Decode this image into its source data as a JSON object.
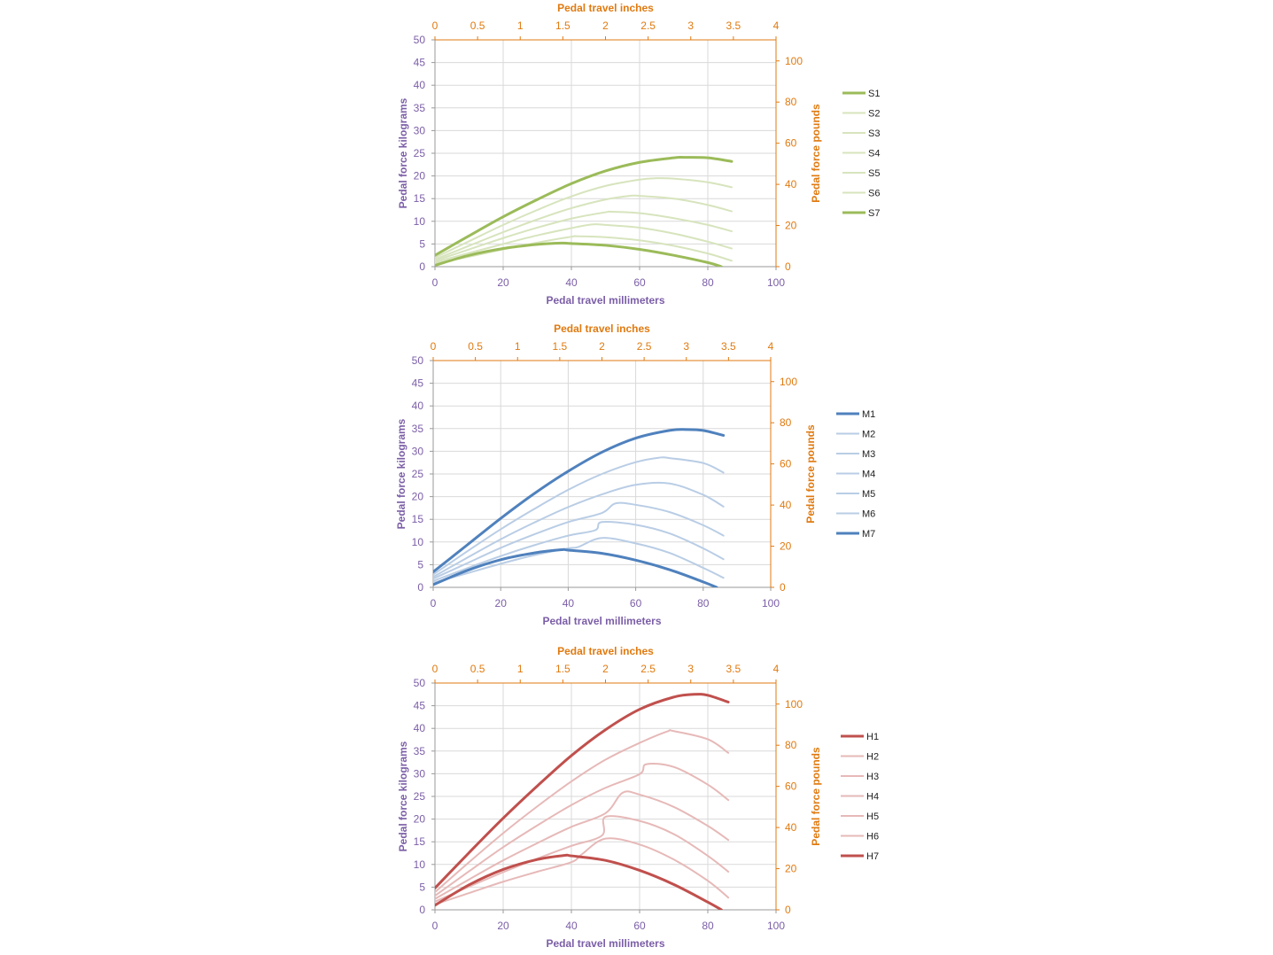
{
  "chart_data": [
    {
      "type": "line",
      "id": "S",
      "xlabel": "Pedal travel millimeters",
      "x2label": "Pedal travel inches",
      "ylabel": "Pedal force kilograms",
      "y2label": "Pedal force pounds",
      "xlim": [
        0,
        100
      ],
      "x2lim": [
        0,
        4
      ],
      "ylim": [
        0,
        50
      ],
      "y2lim": [
        0,
        110.23
      ],
      "xticks": [
        0,
        20,
        40,
        60,
        80,
        100
      ],
      "x2ticks": [
        "0",
        "0.5",
        "1",
        "1.5",
        "2",
        "2.5",
        "3",
        "3.5",
        "4"
      ],
      "yticks": [
        0,
        5,
        10,
        15,
        20,
        25,
        30,
        35,
        40,
        45,
        50
      ],
      "y2ticks": [
        0,
        20,
        40,
        60,
        80,
        100
      ],
      "grid": true,
      "legend_position": "right",
      "color_strong": "#9bbb59",
      "color_light": "#d7e4bd",
      "series": [
        {
          "name": "S1",
          "emphasis": true,
          "x": [
            0,
            10,
            20,
            30,
            40,
            50,
            60,
            70,
            73,
            80,
            87
          ],
          "values": [
            2.5,
            6.8,
            11.0,
            14.8,
            18.3,
            21.1,
            23.0,
            24.0,
            24.1,
            24.0,
            23.2
          ]
        },
        {
          "name": "S2",
          "emphasis": false,
          "x": [
            0,
            10,
            20,
            30,
            40,
            50,
            60,
            65,
            70,
            80,
            87
          ],
          "values": [
            2.0,
            5.6,
            9.2,
            12.5,
            15.5,
            17.8,
            19.2,
            19.5,
            19.4,
            18.6,
            17.5
          ]
        },
        {
          "name": "S3",
          "emphasis": false,
          "x": [
            0,
            10,
            20,
            30,
            40,
            50,
            57,
            60,
            70,
            80,
            87
          ],
          "values": [
            1.6,
            4.6,
            7.6,
            10.4,
            12.9,
            14.8,
            15.6,
            15.6,
            15.0,
            13.6,
            12.2
          ]
        },
        {
          "name": "S4",
          "emphasis": false,
          "x": [
            0,
            10,
            20,
            30,
            40,
            50,
            52,
            60,
            70,
            80,
            87
          ],
          "values": [
            1.3,
            3.8,
            6.3,
            8.6,
            10.6,
            12.0,
            12.1,
            11.8,
            10.7,
            9.2,
            7.8
          ]
        },
        {
          "name": "S5",
          "emphasis": false,
          "x": [
            0,
            10,
            20,
            30,
            40,
            46,
            50,
            60,
            70,
            80,
            87
          ],
          "values": [
            1.0,
            3.0,
            5.0,
            6.9,
            8.5,
            9.3,
            9.2,
            8.6,
            7.3,
            5.5,
            4.0
          ]
        },
        {
          "name": "S6",
          "emphasis": false,
          "x": [
            0,
            10,
            20,
            30,
            40,
            42,
            50,
            60,
            70,
            80,
            87
          ],
          "values": [
            0.7,
            2.2,
            3.8,
            5.3,
            6.6,
            6.7,
            6.5,
            5.8,
            4.6,
            2.9,
            1.3
          ]
        },
        {
          "name": "S7",
          "emphasis": true,
          "x": [
            0,
            10,
            20,
            30,
            37,
            40,
            50,
            60,
            70,
            80,
            84
          ],
          "values": [
            0.3,
            2.5,
            4.0,
            4.9,
            5.2,
            5.1,
            4.7,
            3.8,
            2.5,
            0.9,
            0.0
          ]
        }
      ]
    },
    {
      "type": "line",
      "id": "M",
      "xlabel": "Pedal travel millimeters",
      "x2label": "Pedal travel inches",
      "ylabel": "Pedal force kilograms",
      "y2label": "Pedal force pounds",
      "xlim": [
        0,
        100
      ],
      "x2lim": [
        0,
        4
      ],
      "ylim": [
        0,
        50
      ],
      "y2lim": [
        0,
        110.23
      ],
      "xticks": [
        0,
        20,
        40,
        60,
        80,
        100
      ],
      "x2ticks": [
        "0",
        "0.5",
        "1",
        "1.5",
        "2",
        "2.5",
        "3",
        "3.5",
        "4"
      ],
      "yticks": [
        0,
        5,
        10,
        15,
        20,
        25,
        30,
        35,
        40,
        45,
        50
      ],
      "y2ticks": [
        0,
        20,
        40,
        60,
        80,
        100
      ],
      "grid": true,
      "legend_position": "right",
      "color_strong": "#4f81bd",
      "color_light": "#b9cde5",
      "series": [
        {
          "name": "M1",
          "emphasis": true,
          "x": [
            0,
            10,
            20,
            30,
            40,
            50,
            60,
            70,
            75,
            80,
            86
          ],
          "values": [
            3.4,
            9.3,
            15.2,
            20.7,
            25.6,
            29.8,
            32.9,
            34.6,
            34.8,
            34.6,
            33.5
          ]
        },
        {
          "name": "M2",
          "emphasis": false,
          "x": [
            0,
            10,
            20,
            30,
            40,
            50,
            60,
            67,
            70,
            80,
            86
          ],
          "values": [
            2.8,
            7.9,
            12.8,
            17.3,
            21.5,
            25.0,
            27.6,
            28.6,
            28.5,
            27.4,
            25.3
          ]
        },
        {
          "name": "M3",
          "emphasis": false,
          "x": [
            0,
            10,
            20,
            30,
            40,
            50,
            60,
            70,
            80,
            86
          ],
          "values": [
            2.3,
            6.5,
            10.6,
            14.3,
            17.7,
            20.5,
            22.6,
            22.9,
            20.4,
            17.8
          ]
        },
        {
          "name": "M4",
          "emphasis": false,
          "x": [
            0,
            10,
            20,
            30,
            40,
            50,
            54,
            60,
            70,
            80,
            86
          ],
          "values": [
            1.9,
            5.3,
            8.7,
            11.7,
            14.4,
            16.4,
            18.5,
            18.2,
            16.6,
            13.7,
            11.4
          ]
        },
        {
          "name": "M5",
          "emphasis": false,
          "x": [
            0,
            10,
            20,
            30,
            40,
            48,
            50,
            60,
            70,
            80,
            86
          ],
          "values": [
            1.4,
            4.2,
            6.9,
            9.3,
            11.4,
            12.6,
            14.4,
            13.8,
            11.9,
            8.6,
            6.2
          ]
        },
        {
          "name": "M6",
          "emphasis": false,
          "x": [
            0,
            10,
            20,
            30,
            40,
            43,
            50,
            60,
            70,
            80,
            86
          ],
          "values": [
            1.0,
            3.1,
            5.2,
            7.1,
            8.6,
            8.9,
            10.9,
            9.7,
            7.6,
            4.3,
            2.1
          ]
        },
        {
          "name": "M7",
          "emphasis": true,
          "x": [
            0,
            10,
            20,
            30,
            38,
            40,
            50,
            60,
            70,
            80,
            84
          ],
          "values": [
            0.6,
            3.7,
            6.1,
            7.6,
            8.3,
            8.2,
            7.5,
            6.0,
            3.9,
            1.2,
            0.0
          ]
        }
      ]
    },
    {
      "type": "line",
      "id": "H",
      "xlabel": "Pedal travel millimeters",
      "x2label": "Pedal travel inches",
      "ylabel": "Pedal force kilograms",
      "y2label": "Pedal force pounds",
      "xlim": [
        0,
        100
      ],
      "x2lim": [
        0,
        4
      ],
      "ylim": [
        0,
        50
      ],
      "y2lim": [
        0,
        110.23
      ],
      "xticks": [
        0,
        20,
        40,
        60,
        80,
        100
      ],
      "x2ticks": [
        "0",
        "0.5",
        "1",
        "1.5",
        "2",
        "2.5",
        "3",
        "3.5",
        "4"
      ],
      "yticks": [
        0,
        5,
        10,
        15,
        20,
        25,
        30,
        35,
        40,
        45,
        50
      ],
      "y2ticks": [
        0,
        20,
        40,
        60,
        80,
        100
      ],
      "grid": true,
      "legend_position": "right",
      "color_strong": "#c0504d",
      "color_light": "#e6b9b8",
      "series": [
        {
          "name": "H1",
          "emphasis": true,
          "x": [
            0,
            10,
            20,
            30,
            40,
            50,
            60,
            70,
            76,
            80,
            86
          ],
          "values": [
            4.8,
            12.6,
            20.2,
            27.3,
            34.0,
            39.7,
            44.2,
            46.9,
            47.5,
            47.3,
            45.8
          ]
        },
        {
          "name": "H2",
          "emphasis": false,
          "x": [
            0,
            10,
            20,
            30,
            40,
            50,
            60,
            68,
            70,
            80,
            86
          ],
          "values": [
            3.9,
            10.5,
            16.9,
            22.8,
            28.3,
            33.1,
            36.8,
            39.3,
            39.4,
            37.6,
            34.6
          ]
        },
        {
          "name": "H3",
          "emphasis": false,
          "x": [
            0,
            10,
            20,
            30,
            40,
            50,
            60,
            62,
            70,
            80,
            86
          ],
          "values": [
            3.1,
            8.5,
            13.8,
            18.6,
            23.1,
            26.9,
            29.9,
            32.1,
            31.5,
            27.6,
            24.2
          ]
        },
        {
          "name": "H4",
          "emphasis": false,
          "x": [
            0,
            10,
            20,
            30,
            40,
            50,
            55,
            60,
            70,
            80,
            86
          ],
          "values": [
            2.4,
            6.7,
            10.9,
            14.7,
            18.3,
            21.3,
            25.8,
            25.4,
            22.7,
            18.5,
            15.4
          ]
        },
        {
          "name": "H5",
          "emphasis": false,
          "x": [
            0,
            10,
            20,
            30,
            40,
            49,
            50,
            60,
            70,
            80,
            86
          ],
          "values": [
            1.8,
            5.1,
            8.3,
            11.3,
            14.1,
            16.4,
            20.5,
            19.6,
            16.7,
            11.9,
            8.4
          ]
        },
        {
          "name": "H6",
          "emphasis": false,
          "x": [
            0,
            10,
            20,
            30,
            40,
            43,
            50,
            60,
            70,
            80,
            86
          ],
          "values": [
            1.2,
            3.7,
            6.2,
            8.4,
            10.5,
            12.2,
            15.7,
            14.4,
            11.1,
            6.4,
            2.7
          ]
        },
        {
          "name": "H7",
          "emphasis": true,
          "x": [
            0,
            10,
            20,
            30,
            38,
            40,
            50,
            60,
            70,
            80,
            84
          ],
          "values": [
            1.0,
            5.5,
            8.9,
            11.1,
            12.0,
            11.9,
            10.9,
            8.7,
            5.6,
            1.7,
            0.0
          ]
        }
      ]
    }
  ]
}
